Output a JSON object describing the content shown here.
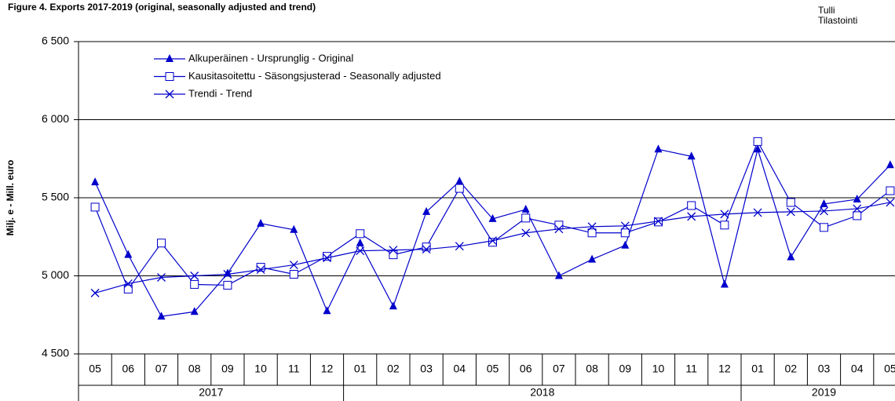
{
  "chart_data": {
    "type": "line",
    "title": "Figure  4. Exports 2017-2019 (original, seasonally adjusted and trend)",
    "source": [
      "Tulli",
      "Tilastointi"
    ],
    "y_label": "Milj. e - Mill. euro",
    "categories": [
      "05",
      "06",
      "07",
      "08",
      "09",
      "10",
      "11",
      "12",
      "01",
      "02",
      "03",
      "04",
      "05",
      "06",
      "07",
      "08",
      "09",
      "10",
      "11",
      "12",
      "01",
      "02",
      "03",
      "04",
      "05"
    ],
    "x_groups": [
      "2017",
      "2018",
      "2019"
    ],
    "series": [
      {
        "name": "Alkuperäinen - Ursprunglig - Original",
        "color": "#0000cc",
        "marker": "triangle",
        "values": [
          5600,
          5135,
          4740,
          4770,
          5015,
          5335,
          5295,
          4775,
          5210,
          4805,
          5410,
          5605,
          5365,
          5425,
          5000,
          5105,
          5195,
          5810,
          5765,
          4945,
          5810,
          5120,
          5460,
          5490,
          5710
        ]
      },
      {
        "name": "Kausitasoitettu - Säsongsjusterad - Seasonally adjusted",
        "color": "#0000cc",
        "marker": "square",
        "values": [
          5440,
          4915,
          5210,
          4945,
          4940,
          5055,
          5010,
          5125,
          5270,
          5135,
          5185,
          5560,
          5215,
          5370,
          5325,
          5275,
          5275,
          5345,
          5450,
          5325,
          5860,
          5470,
          5310,
          5385,
          5545
        ]
      },
      {
        "name": "Trendi - Trend",
        "color": "#0000cc",
        "marker": "x",
        "values": [
          4890,
          4950,
          4990,
          5000,
          5010,
          5040,
          5070,
          5115,
          5160,
          5165,
          5170,
          5190,
          5225,
          5275,
          5300,
          5315,
          5320,
          5350,
          5380,
          5395,
          5405,
          5410,
          5415,
          5430,
          5470
        ]
      }
    ],
    "ylim": [
      4500,
      6500
    ],
    "yticks": [
      {
        "value": 4500,
        "label": "4 500"
      },
      {
        "value": 5000,
        "label": "5 000"
      },
      {
        "value": 5500,
        "label": "5 500"
      },
      {
        "value": 6000,
        "label": "6 000"
      },
      {
        "value": 6500,
        "label": "6 500"
      }
    ],
    "grid": true
  }
}
